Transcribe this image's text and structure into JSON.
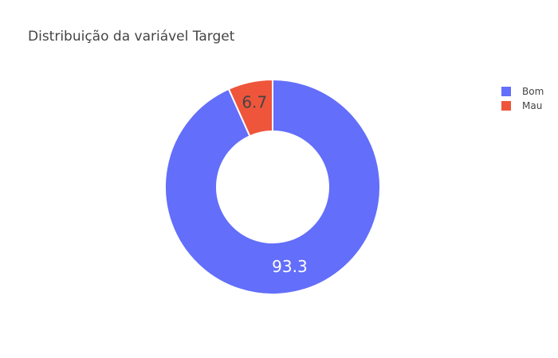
{
  "chart_data": {
    "type": "pie",
    "title": "Distribuição da variável Target",
    "hole": true,
    "categories": [
      "Bom",
      "Mau"
    ],
    "values": [
      93.3,
      6.7
    ],
    "labels": [
      "93.3",
      "6.7"
    ],
    "colors": [
      "#636efa",
      "#ef553b"
    ],
    "label_colors": [
      "#ffffff",
      "#444444"
    ],
    "legend": {
      "position": "top-right",
      "entries": [
        "Bom",
        "Mau"
      ]
    }
  }
}
